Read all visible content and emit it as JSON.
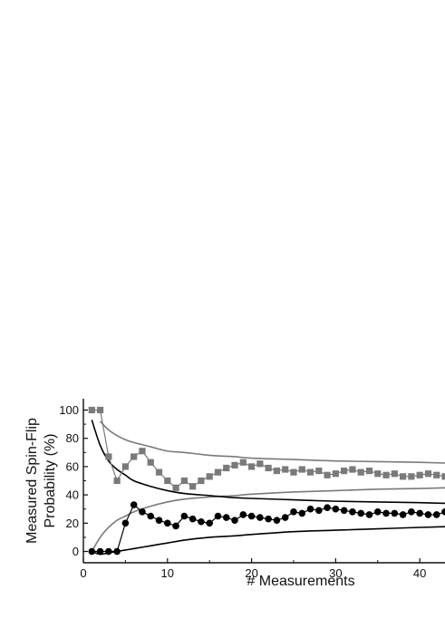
{
  "chart_data": {
    "type": "scatter",
    "title": "",
    "xlabel": "# Measurements",
    "ylabel_lines": [
      "Measured Spin-Flip",
      "Probability (%)"
    ],
    "xlim": [
      0,
      43
    ],
    "ylim": [
      -8,
      108
    ],
    "x_ticks": [
      0,
      10,
      20,
      30,
      40
    ],
    "x_tick_labels": [
      "0",
      "10",
      "20",
      "30",
      "40"
    ],
    "y_ticks": [
      0,
      20,
      40,
      60,
      80,
      100
    ],
    "y_tick_labels": [
      "0",
      "20",
      "40",
      "60",
      "80",
      "100"
    ],
    "grid": false,
    "legend": "none",
    "colors": {
      "squares_series": "#7a7a7a",
      "circles_series": "#000000",
      "upper_gray_curve": "#7a7a7a",
      "lower_gray_curve": "#7a7a7a",
      "upper_black_curve": "#000000",
      "lower_black_curve": "#000000",
      "axes": "#111111"
    },
    "series": [
      {
        "marker": "square",
        "connected": true,
        "x": [
          1,
          2,
          3,
          4,
          5,
          6,
          7,
          8,
          9,
          10,
          11,
          12,
          13,
          14,
          15,
          16,
          17,
          18,
          19,
          20,
          21,
          22,
          23,
          24,
          25,
          26,
          27,
          28,
          29,
          30,
          31,
          32,
          33,
          34,
          35,
          36,
          37,
          38,
          39,
          40,
          41,
          42,
          43
        ],
        "values": [
          100,
          100,
          67,
          50,
          60,
          67,
          71,
          63,
          56,
          50,
          45,
          50,
          46,
          50,
          53,
          56,
          59,
          61,
          63,
          60,
          62,
          59,
          57,
          58,
          56,
          58,
          56,
          57,
          54,
          55,
          57,
          58,
          56,
          57,
          55,
          54,
          55,
          53,
          53,
          54,
          55,
          54,
          53
        ]
      },
      {
        "marker": "circle",
        "connected": true,
        "x": [
          1,
          2,
          3,
          4,
          5,
          6,
          7,
          8,
          9,
          10,
          11,
          12,
          13,
          14,
          15,
          16,
          17,
          18,
          19,
          20,
          21,
          22,
          23,
          24,
          25,
          26,
          27,
          28,
          29,
          30,
          31,
          32,
          33,
          34,
          35,
          36,
          37,
          38,
          39,
          40,
          41,
          42,
          43
        ],
        "values": [
          0,
          0,
          0,
          0,
          20,
          33,
          28,
          25,
          22,
          20,
          18,
          25,
          23,
          21,
          20,
          25,
          24,
          22,
          26,
          25,
          24,
          23,
          22,
          24,
          28,
          27,
          30,
          29,
          31,
          30,
          29,
          28,
          27,
          26,
          28,
          27,
          27,
          26,
          28,
          27,
          26,
          26,
          28
        ]
      },
      {
        "marker": "none",
        "style": "curve-upper-gray",
        "x": [
          2,
          3,
          4,
          5,
          6,
          8,
          10,
          12,
          15,
          18,
          20,
          25,
          30,
          35,
          40,
          43
        ],
        "values": [
          92,
          86,
          82,
          79,
          77,
          74,
          71,
          70,
          68,
          67,
          66,
          65,
          64,
          63.5,
          63,
          62.5
        ]
      },
      {
        "marker": "none",
        "style": "curve-lower-gray",
        "x": [
          1,
          2,
          3,
          4,
          5,
          6,
          8,
          10,
          12,
          15,
          18,
          20,
          25,
          30,
          35,
          40,
          43
        ],
        "values": [
          0,
          10,
          17,
          22,
          25,
          28,
          32,
          35,
          37,
          38.5,
          39.5,
          40.5,
          42,
          43,
          44,
          44.5,
          45
        ]
      },
      {
        "marker": "none",
        "style": "curve-upper-black",
        "x": [
          1,
          2,
          3,
          4,
          5,
          6,
          8,
          10,
          12,
          15,
          18,
          20,
          25,
          30,
          35,
          40,
          43
        ],
        "values": [
          93,
          75,
          64,
          58,
          54,
          50,
          46,
          43,
          41,
          39.5,
          38,
          37.5,
          36.5,
          35.5,
          35,
          34.5,
          34
        ]
      },
      {
        "marker": "none",
        "style": "curve-lower-black",
        "x": [
          1,
          2,
          3,
          4,
          5,
          6,
          8,
          10,
          12,
          15,
          18,
          20,
          25,
          30,
          35,
          40,
          43
        ],
        "values": [
          0,
          -2,
          -1,
          0,
          1,
          2,
          4,
          6,
          8,
          10,
          11,
          12,
          14,
          15,
          16,
          17,
          17.5
        ]
      }
    ]
  }
}
